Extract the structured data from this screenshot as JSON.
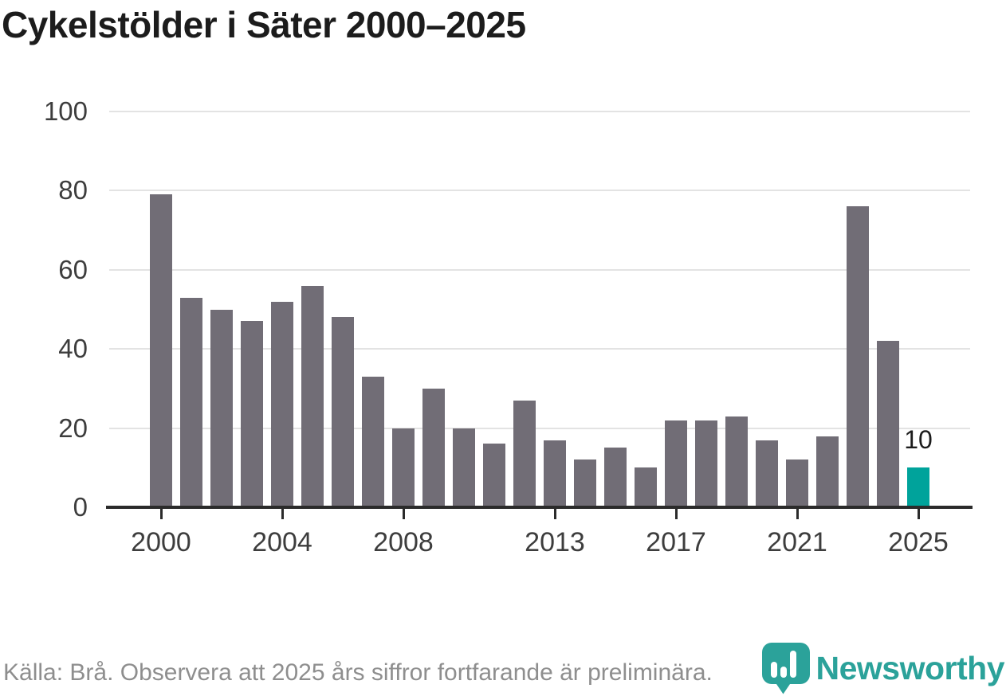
{
  "title": "Cykelstölder i Säter 2000–2025",
  "footer": {
    "source_note": "Källa: Brå. Observera att 2025 års siffror fortfarande är preliminära."
  },
  "branding": {
    "wordmark": "Newsworthy",
    "logo_icon": "newsworthy-speech-bubble-bar-chart-icon",
    "teal": "#2ba29a"
  },
  "chart_data": {
    "type": "bar",
    "title": "Cykelstölder i Säter 2000–2025",
    "x": [
      2000,
      2001,
      2002,
      2003,
      2004,
      2005,
      2006,
      2007,
      2008,
      2009,
      2010,
      2011,
      2012,
      2013,
      2014,
      2015,
      2016,
      2017,
      2018,
      2019,
      2020,
      2021,
      2022,
      2023,
      2024,
      2025
    ],
    "values": [
      79,
      53,
      50,
      47,
      52,
      56,
      48,
      33,
      20,
      30,
      20,
      16,
      27,
      17,
      12,
      15,
      10,
      22,
      22,
      23,
      17,
      12,
      18,
      76,
      42,
      10
    ],
    "highlight_year": 2025,
    "highlight_value_label": "10",
    "bar_color": "#716d76",
    "highlight_color": "#00a39b",
    "ylim": [
      0,
      100
    ],
    "yticks": [
      0,
      20,
      40,
      60,
      80,
      100
    ],
    "xticks": [
      2000,
      2004,
      2008,
      2013,
      2017,
      2021,
      2025
    ],
    "grid": "horizontal",
    "gridline_color": "#e3e3e3",
    "axis_color": "#2b2b2b"
  }
}
